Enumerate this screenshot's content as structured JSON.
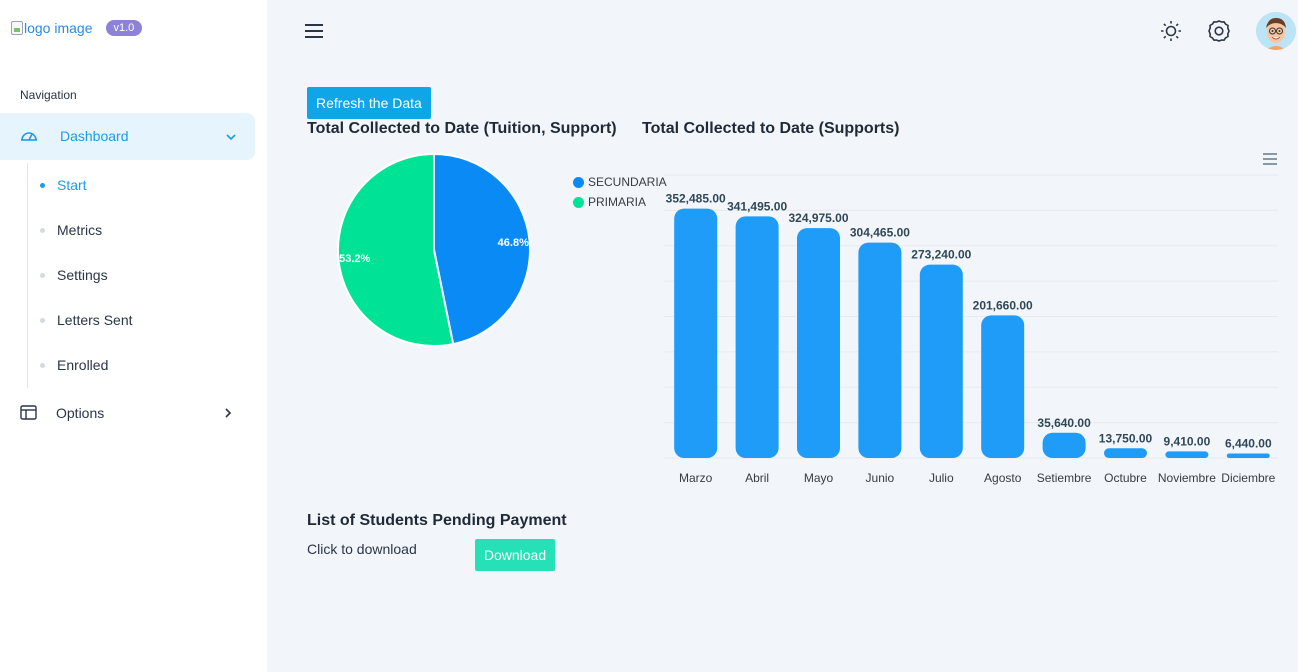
{
  "sidebar": {
    "logo_alt": "logo image",
    "version": "v1.0",
    "nav_heading": "Navigation",
    "dashboard_label": "Dashboard",
    "sub_items": [
      {
        "label": "Start",
        "active": true
      },
      {
        "label": "Metrics",
        "active": false
      },
      {
        "label": "Settings",
        "active": false
      },
      {
        "label": "Letters Sent",
        "active": false
      },
      {
        "label": "Enrolled",
        "active": false
      }
    ],
    "options_label": "Options"
  },
  "header": {
    "icons": [
      "menu-icon",
      "sun-icon",
      "gear-icon",
      "avatar"
    ]
  },
  "main": {
    "refresh_label": "Refresh the Data",
    "pie_title": "Total Collected to Date (Tuition, Support)",
    "bar_title": "Total Collected to Date (Supports)",
    "pending_title": "List of Students Pending Payment",
    "click_text": "Click to download",
    "download_label": "Download"
  },
  "colors": {
    "accent": "#1e9be6",
    "secundaria": "#0a8af5",
    "primaria": "#00e396",
    "bar": "#1f9cf7",
    "download": "#26e0b7"
  },
  "chart_data": [
    {
      "type": "pie",
      "title": "Total Collected to Date (Tuition, Support)",
      "series": [
        {
          "name": "SECUNDARIA",
          "value": 46.8,
          "label": "46.8%",
          "color": "#0a8af5"
        },
        {
          "name": "PRIMARIA",
          "value": 53.2,
          "label": "53.2%",
          "color": "#00e396"
        }
      ],
      "legend": "right"
    },
    {
      "type": "bar",
      "title": "Total Collected to Date (Supports)",
      "categories": [
        "Marzo",
        "Abril",
        "Mayo",
        "Junio",
        "Julio",
        "Agosto",
        "Setiembre",
        "Octubre",
        "Noviembre",
        "Diciembre"
      ],
      "values": [
        352485,
        341495,
        324975,
        304465,
        273240,
        201660,
        35640,
        13750,
        9410,
        6440
      ],
      "labels": [
        "352,485.00",
        "341,495.00",
        "324,975.00",
        "304,465.00",
        "273,240.00",
        "201,660.00",
        "35,640.00",
        "13,750.00",
        "9,410.00",
        "6,440.00"
      ],
      "ylim": [
        0,
        400000
      ],
      "grid": true,
      "color": "#1f9cf7"
    }
  ]
}
